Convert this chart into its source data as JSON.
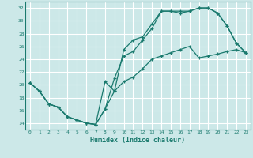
{
  "xlabel": "Humidex (Indice chaleur)",
  "bg_color": "#cce8e8",
  "grid_color": "#b8d8d8",
  "line_color": "#1a7a6e",
  "xlim": [
    -0.5,
    23.5
  ],
  "ylim": [
    13,
    33
  ],
  "xticks": [
    0,
    1,
    2,
    3,
    4,
    5,
    6,
    7,
    8,
    9,
    10,
    11,
    12,
    13,
    14,
    15,
    16,
    17,
    18,
    19,
    20,
    21,
    22,
    23
  ],
  "yticks": [
    14,
    16,
    18,
    20,
    22,
    24,
    26,
    28,
    30,
    32
  ],
  "line1_x": [
    0,
    1,
    2,
    3,
    4,
    5,
    6,
    7,
    8,
    9,
    10,
    11,
    12,
    13,
    14,
    15,
    16,
    17,
    18,
    19,
    20,
    21,
    22,
    23
  ],
  "line1_y": [
    20.3,
    19.0,
    17.0,
    16.5,
    15.0,
    14.5,
    14.0,
    13.8,
    16.2,
    21.0,
    24.5,
    25.2,
    27.0,
    28.8,
    31.5,
    31.5,
    31.2,
    31.5,
    32.0,
    32.0,
    31.2,
    29.2,
    26.5,
    25.0
  ],
  "line2_x": [
    0,
    1,
    2,
    3,
    4,
    5,
    6,
    7,
    8,
    9,
    10,
    11,
    12,
    13,
    14,
    15,
    16,
    17,
    18,
    19,
    20,
    21,
    22,
    23
  ],
  "line2_y": [
    20.3,
    19.0,
    17.0,
    16.5,
    15.0,
    14.5,
    14.0,
    13.8,
    20.5,
    19.0,
    25.5,
    27.0,
    27.5,
    29.5,
    31.5,
    31.5,
    31.5,
    31.5,
    32.0,
    32.0,
    31.2,
    29.2,
    26.5,
    25.0
  ],
  "line3_x": [
    0,
    1,
    2,
    3,
    4,
    5,
    6,
    7,
    8,
    9,
    10,
    11,
    12,
    13,
    14,
    15,
    16,
    17,
    18,
    19,
    20,
    21,
    22,
    23
  ],
  "line3_y": [
    20.3,
    19.0,
    17.0,
    16.5,
    15.0,
    14.5,
    14.0,
    13.8,
    16.2,
    19.0,
    20.5,
    21.2,
    22.5,
    24.0,
    24.5,
    25.0,
    25.5,
    26.0,
    24.2,
    24.5,
    24.8,
    25.2,
    25.5,
    25.0
  ]
}
